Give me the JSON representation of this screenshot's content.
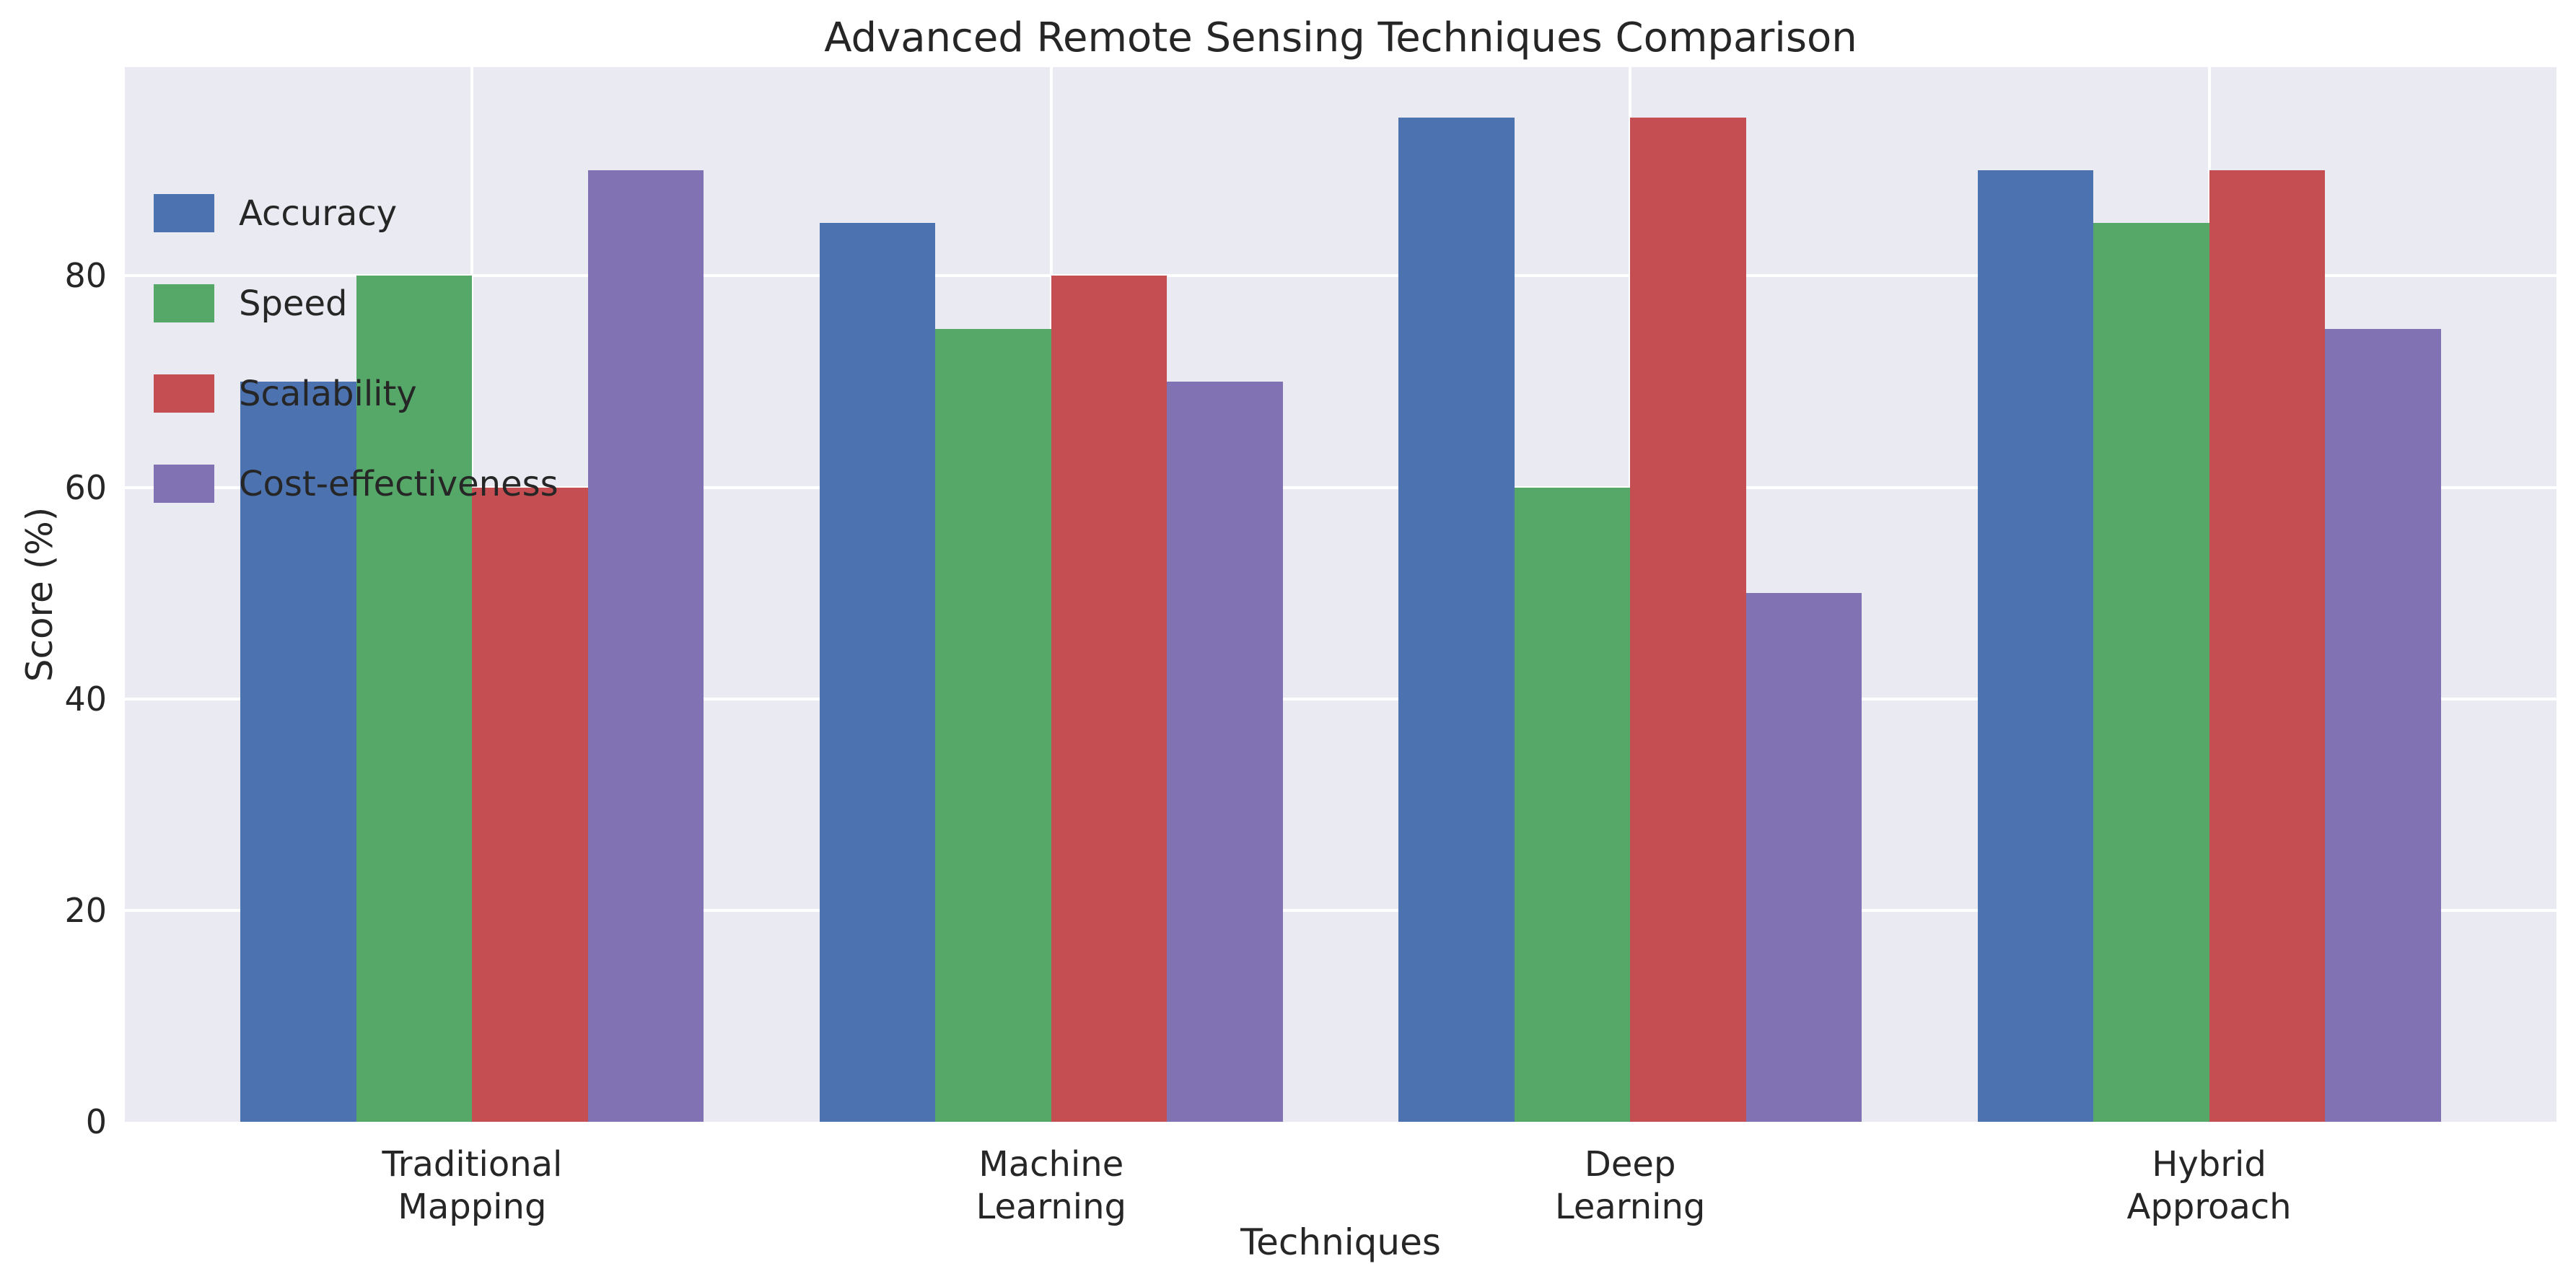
{
  "chart_data": {
    "type": "bar",
    "title": "Advanced Remote Sensing Techniques Comparison",
    "xlabel": "Techniques",
    "ylabel": "Score (%)",
    "categories": [
      "Traditional\nMapping",
      "Machine\nLearning",
      "Deep\nLearning",
      "Hybrid\nApproach"
    ],
    "series": [
      {
        "name": "Accuracy",
        "color": "#4C72B0",
        "values": [
          70,
          85,
          95,
          90
        ]
      },
      {
        "name": "Speed",
        "color": "#55A868",
        "values": [
          80,
          75,
          60,
          85
        ]
      },
      {
        "name": "Scalability",
        "color": "#C44E52",
        "values": [
          60,
          80,
          95,
          90
        ]
      },
      {
        "name": "Cost-effectiveness",
        "color": "#8172B3",
        "values": [
          90,
          70,
          50,
          75
        ]
      }
    ],
    "yticks": [
      0,
      20,
      40,
      60,
      80
    ],
    "ylim": [
      0,
      99.75
    ],
    "xlim": [
      -0.6,
      3.6
    ],
    "bar_width": 0.2,
    "grid": true,
    "legend_position": "upper-left",
    "colors": {
      "plot_background": "#EAEAF2",
      "figure_background": "#FFFFFF",
      "gridline": "#FFFFFF",
      "text": "#262626"
    }
  }
}
